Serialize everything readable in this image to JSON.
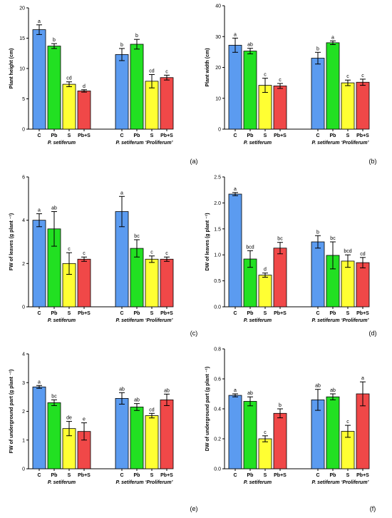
{
  "colors": {
    "C": "#5b9bf0",
    "Pb": "#22e022",
    "S": "#ffff33",
    "PbS": "#f04848"
  },
  "categories": [
    "C",
    "Pb",
    "S",
    "Pb+S"
  ],
  "groups": [
    "P. setiferum",
    "P. setiferum  ‘Proliferum’"
  ],
  "chart_data": [
    {
      "type": "bar",
      "panel_label": "(a)",
      "ylabel": "Plant height (cm)",
      "ylim": [
        0,
        20
      ],
      "yticks": [
        0,
        5,
        10,
        15,
        20
      ],
      "series": [
        {
          "group": "P. setiferum",
          "values": [
            16.4,
            13.7,
            7.4,
            6.3
          ],
          "errors": [
            0.8,
            0.4,
            0.4,
            0.2
          ],
          "letters": [
            "a",
            "b",
            "cd",
            "d"
          ]
        },
        {
          "group": "P. setiferum  ‘Proliferum’",
          "values": [
            12.3,
            14.0,
            7.9,
            8.5
          ],
          "errors": [
            1.0,
            0.8,
            1.1,
            0.4
          ],
          "letters": [
            "b",
            "b",
            "cd",
            "c"
          ]
        }
      ]
    },
    {
      "type": "bar",
      "panel_label": "(b)",
      "ylabel": "Plant width (cm)",
      "ylim": [
        0,
        40
      ],
      "yticks": [
        0,
        10,
        20,
        30,
        40
      ],
      "series": [
        {
          "group": "P. setiferum",
          "values": [
            27.2,
            25.3,
            14.2,
            14.0
          ],
          "errors": [
            2.3,
            0.9,
            2.3,
            0.8
          ],
          "letters": [
            "a",
            "ab",
            "c",
            "c"
          ]
        },
        {
          "group": "P. setiferum  ‘Proliferum’",
          "values": [
            23.0,
            28.0,
            15.0,
            15.2
          ],
          "errors": [
            1.9,
            0.6,
            0.9,
            1.0
          ],
          "letters": [
            "b",
            "a",
            "c",
            "c"
          ]
        }
      ]
    },
    {
      "type": "bar",
      "panel_label": "(c)",
      "ylabel": "FW of leaves (g plant ⁻¹)",
      "ylim": [
        0,
        6
      ],
      "yticks": [
        0,
        2,
        4,
        6
      ],
      "series": [
        {
          "group": "P. setiferum",
          "values": [
            4.0,
            3.6,
            2.0,
            2.2
          ],
          "errors": [
            0.3,
            0.8,
            0.5,
            0.1
          ],
          "letters": [
            "a",
            "ab",
            "c",
            "c"
          ]
        },
        {
          "group": "P. setiferum  ‘Proliferum’",
          "values": [
            4.4,
            2.7,
            2.2,
            2.2
          ],
          "errors": [
            0.7,
            0.4,
            0.15,
            0.1
          ],
          "letters": [
            "a",
            "bc",
            "c",
            "c"
          ]
        }
      ]
    },
    {
      "type": "bar",
      "panel_label": "(d)",
      "ylabel": "DW of leaves (g plant ⁻¹)",
      "ylim": [
        0,
        2.5
      ],
      "yticks": [
        0,
        0.5,
        1.0,
        1.5,
        2.0,
        2.5
      ],
      "series": [
        {
          "group": "P. setiferum",
          "values": [
            2.17,
            0.92,
            0.61,
            1.13
          ],
          "errors": [
            0.03,
            0.16,
            0.04,
            0.11
          ],
          "letters": [
            "a",
            "bcd",
            "d",
            "bc"
          ]
        },
        {
          "group": "P. setiferum  ‘Proliferum’",
          "values": [
            1.25,
            0.99,
            0.88,
            0.85
          ],
          "errors": [
            0.12,
            0.26,
            0.12,
            0.1
          ],
          "letters": [
            "b",
            "bc",
            "bcd",
            "cd"
          ]
        }
      ]
    },
    {
      "type": "bar",
      "panel_label": "(e)",
      "ylabel": "FW of underground part (g plant ⁻¹)",
      "ylim": [
        0,
        4
      ],
      "yticks": [
        0,
        1,
        2,
        3,
        4
      ],
      "series": [
        {
          "group": "P. setiferum",
          "values": [
            2.85,
            2.3,
            1.4,
            1.3
          ],
          "errors": [
            0.05,
            0.1,
            0.25,
            0.3
          ],
          "letters": [
            "a",
            "bc",
            "de",
            "e"
          ]
        },
        {
          "group": "P. setiferum  ‘Proliferum’",
          "values": [
            2.45,
            2.15,
            1.85,
            2.4
          ],
          "errors": [
            0.2,
            0.12,
            0.08,
            0.2
          ],
          "letters": [
            "ab",
            "ab",
            "cd",
            "ab"
          ]
        }
      ]
    },
    {
      "type": "bar",
      "panel_label": "(f)",
      "ylabel": "DW of underground part (g plant ⁻¹)",
      "ylim": [
        0,
        0.8
      ],
      "yticks": [
        0.0,
        0.2,
        0.4,
        0.6,
        0.8
      ],
      "series": [
        {
          "group": "P. setiferum",
          "values": [
            0.49,
            0.45,
            0.2,
            0.37
          ],
          "errors": [
            0.01,
            0.03,
            0.02,
            0.03
          ],
          "letters": [
            "a",
            "ab",
            "c",
            "b"
          ]
        },
        {
          "group": "P. setiferum  ‘Proliferum’",
          "values": [
            0.46,
            0.48,
            0.25,
            0.5
          ],
          "errors": [
            0.07,
            0.02,
            0.04,
            0.08
          ],
          "letters": [
            "ab",
            "ab",
            "c",
            "a"
          ]
        }
      ]
    }
  ]
}
